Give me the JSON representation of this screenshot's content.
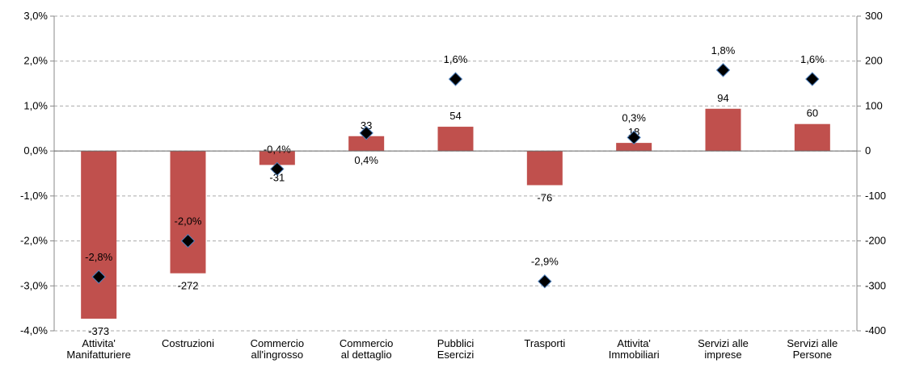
{
  "chart_data": {
    "type": "combo",
    "categories": [
      "Attivita'\nManifatturiere",
      "Costruzioni",
      "Commercio\nall'ingrosso",
      "Commercio\nal dettaglio",
      "Pubblici\nEsercizi",
      "Trasporti",
      "Attivita'\nImmobiliari",
      "Servizi alle\nimprese",
      "Servizi alle\nPersone"
    ],
    "series": [
      {
        "type": "bar",
        "axis": "y2",
        "color": "#c0504d",
        "values": [
          -373,
          -272,
          -31,
          33,
          54,
          -76,
          18,
          94,
          60
        ]
      },
      {
        "type": "marker",
        "color": "#000000",
        "values": [
          -2.8,
          -2.0,
          -0.4,
          0.4,
          1.6,
          -2.9,
          0.3,
          1.8,
          1.6
        ],
        "value_labels": [
          "-2,8%",
          "-2,0%",
          "-0,4%",
          "0,4%",
          "1,6%",
          "-2,9%",
          "0,3%",
          "1,8%",
          "1,6%"
        ]
      }
    ],
    "ylim": [
      -4,
      3
    ],
    "yticks": [
      {
        "value": -4,
        "label": "-4,0%"
      },
      {
        "value": -3,
        "label": "-3,0%"
      },
      {
        "value": -2,
        "label": "-2,0%"
      },
      {
        "value": -1,
        "label": "-1,0%"
      },
      {
        "value": 0,
        "label": "0,0%"
      },
      {
        "value": 1,
        "label": "1,0%"
      },
      {
        "value": 2,
        "label": "2,0%"
      },
      {
        "value": 3,
        "label": "3,0%"
      }
    ],
    "y2lim": [
      -400,
      300
    ],
    "y2ticks": [
      -400,
      -300,
      -200,
      -100,
      0,
      100,
      200,
      300
    ],
    "grid": true
  }
}
